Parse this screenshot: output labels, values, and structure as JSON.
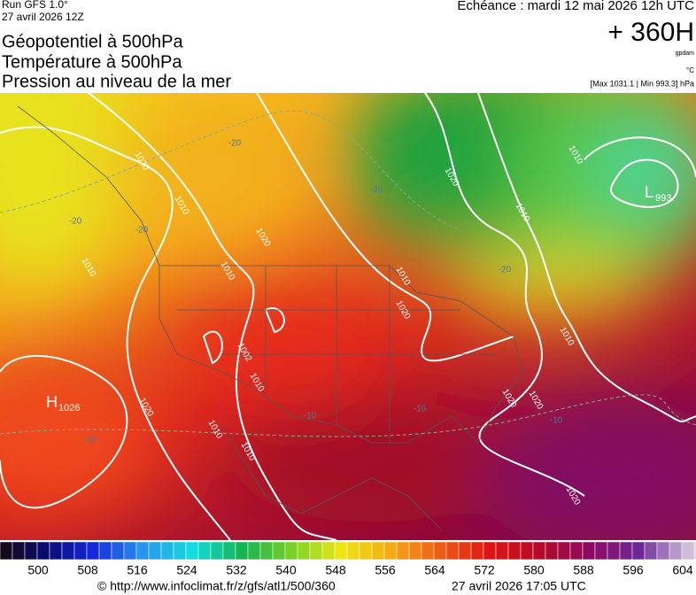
{
  "header": {
    "run": "Run GFS 1.0°",
    "run_date": "27 avril 2026 12Z",
    "titles": [
      "Géopotentiel à 500hPa",
      "Température à 500hPa",
      "Pression au niveau de la mer"
    ],
    "forecast": "Echéance : mardi 12 mai 2026 12h UTC",
    "lead": "+ 360H",
    "unit_geo": "gpdam",
    "unit_temp": "°C",
    "range": "[Max 1031.1 | Min 993.3] hPa"
  },
  "map": {
    "high": {
      "symbol": "H",
      "value": "1026"
    },
    "low": {
      "symbol": "L",
      "value": "993"
    },
    "labels": [
      "1020",
      "1010",
      "1020",
      "1010",
      "1010",
      "1002",
      "1010",
      "1010",
      "1020",
      "1010",
      "1020",
      "1010",
      "1020",
      "1010",
      "1020",
      "1010",
      "1020",
      "1020",
      "1010",
      "-20",
      "-20",
      "-20",
      "-20",
      "-20",
      "-10",
      "-10",
      "-10",
      "-10"
    ]
  },
  "colorbar": {
    "labels": [
      500,
      508,
      516,
      524,
      532,
      540,
      548,
      556,
      564,
      572,
      580,
      588,
      596,
      604
    ]
  },
  "footer": {
    "url": "© http://www.infoclimat.fr/z/gfs/atl1/500/360",
    "date": "27 avril 2026 17:05 UTC"
  }
}
